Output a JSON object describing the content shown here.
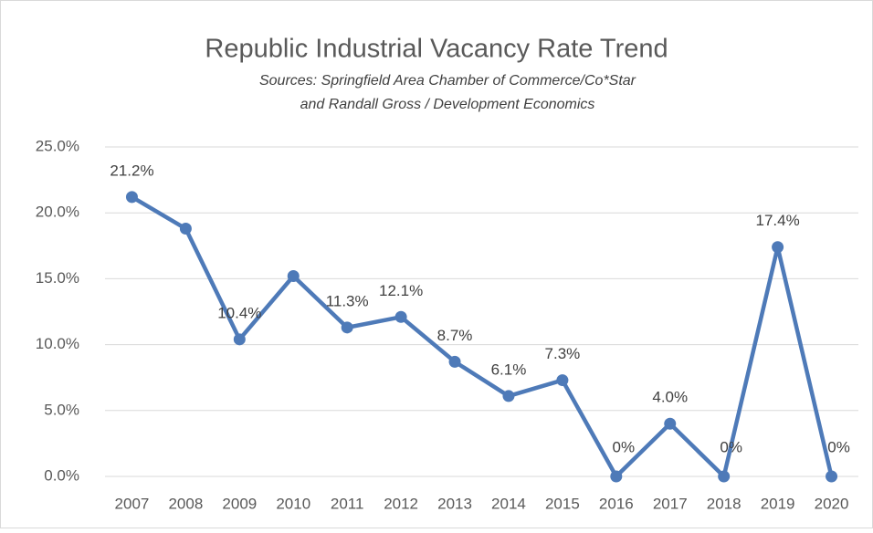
{
  "chart_data": {
    "type": "line",
    "title": "Republic Industrial Vacancy Rate Trend",
    "subtitle": [
      "Sources: Springfield Area Chamber of Commerce/Co*Star",
      "and Randall Gross / Development Economics"
    ],
    "categories": [
      "2007",
      "2008",
      "2009",
      "2010",
      "2011",
      "2012",
      "2013",
      "2014",
      "2015",
      "2016",
      "2017",
      "2018",
      "2019",
      "2020"
    ],
    "series": [
      {
        "name": "Vacancy Rate",
        "color": "#4e7ab8",
        "values": [
          21.2,
          18.8,
          10.4,
          15.2,
          11.3,
          12.1,
          8.7,
          6.1,
          7.3,
          0,
          4.0,
          0,
          17.4,
          0
        ],
        "value_labels": [
          "21.2%",
          null,
          "10.4%",
          null,
          "11.3%",
          "12.1%",
          "8.7%",
          "6.1%",
          "7.3%",
          "0%",
          "4.0%",
          "0%",
          "17.4%",
          "0%"
        ]
      }
    ],
    "ylim": [
      0,
      25
    ],
    "yticks": [
      {
        "value": 0,
        "label": "0.0%"
      },
      {
        "value": 5,
        "label": "5.0%"
      },
      {
        "value": 10,
        "label": "10.0%"
      },
      {
        "value": 15,
        "label": "15.0%"
      },
      {
        "value": 20,
        "label": "20.0%"
      },
      {
        "value": 25,
        "label": "25.0%"
      }
    ],
    "grid": true
  }
}
